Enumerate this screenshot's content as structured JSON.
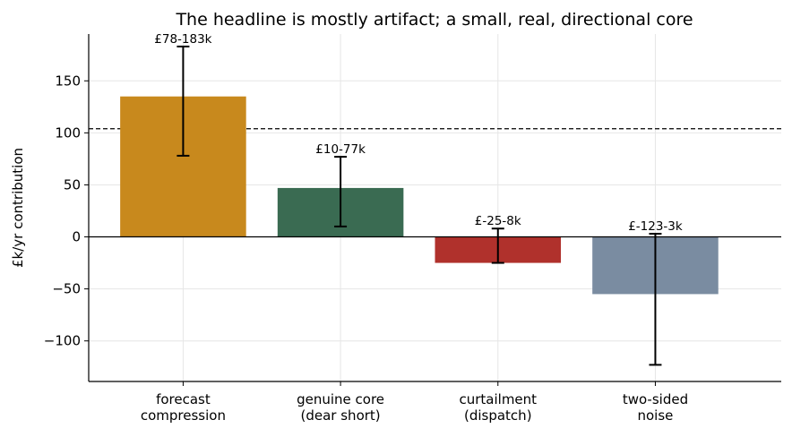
{
  "chart_data": {
    "type": "bar",
    "title": "The headline is mostly artifact; a small, real, directional core",
    "ylabel": "£k/yr contribution",
    "xlabel": "",
    "categories": [
      [
        "forecast",
        "compression"
      ],
      [
        "genuine core",
        "(dear short)"
      ],
      [
        "curtailment",
        "(dispatch)"
      ],
      [
        "two-sided",
        "noise"
      ]
    ],
    "values": [
      135,
      47,
      -25,
      -55
    ],
    "error_low": [
      78,
      10,
      -25,
      -123
    ],
    "error_high": [
      183,
      77,
      8,
      3
    ],
    "data_labels": [
      "£78-183k",
      "£10-77k",
      "£-25-8k",
      "£-123-3k"
    ],
    "colors": [
      "#c8891d",
      "#3a6b52",
      "#b0312c",
      "#7a8ca1"
    ],
    "ylim": [
      -139,
      195
    ],
    "yticks": [
      -100,
      -50,
      0,
      50,
      100,
      150
    ],
    "ytick_labels": [
      "−100",
      "−50",
      "0",
      "50",
      "100",
      "150"
    ],
    "reference_line": 104,
    "grid": true,
    "legend": "none"
  }
}
